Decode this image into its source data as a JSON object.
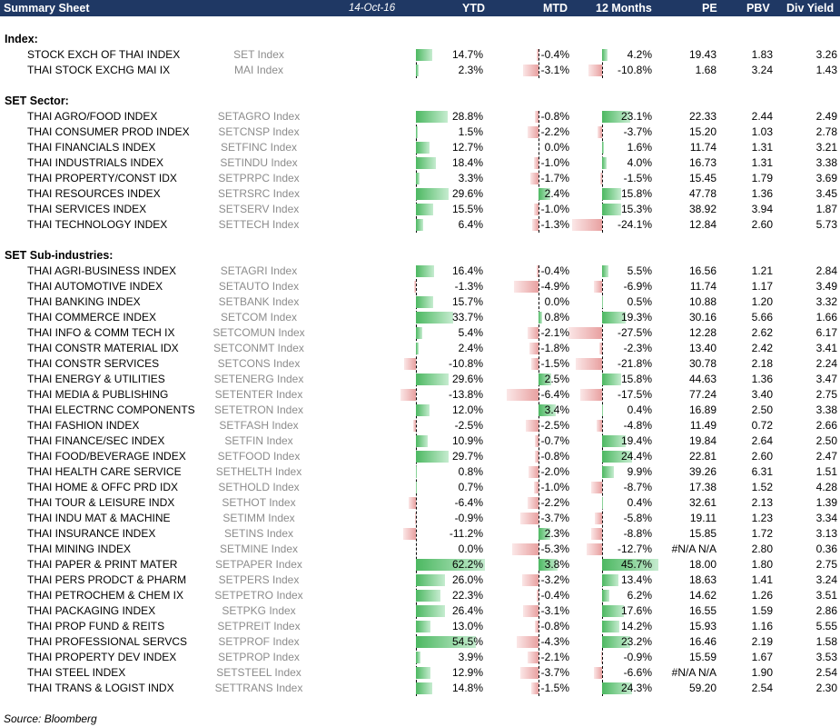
{
  "header": {
    "title": "Summary Sheet",
    "date": "14-Oct-16",
    "columns": {
      "ytd": "YTD",
      "mtd": "MTD",
      "m12": "12 Months",
      "pe": "PE",
      "pbv": "PBV",
      "dy": "Div Yield"
    }
  },
  "colors": {
    "header_bg": "#1f3864",
    "positive_bar": "#4cb861",
    "negative_bar": "#e8a0a0",
    "ticker_text": "#8c8c8c"
  },
  "sections": [
    {
      "title": "Index:",
      "rows": [
        {
          "name": "STOCK EXCH OF THAI INDEX",
          "ticker": "SET Index",
          "ytd": "14.7%",
          "mtd": "-0.4%",
          "m12": "4.2%",
          "pe": "19.43",
          "pbv": "1.83",
          "dy": "3.26"
        },
        {
          "name": "THAI STOCK EXCHG MAI IX",
          "ticker": "MAI Index",
          "ytd": "2.3%",
          "mtd": "-3.1%",
          "m12": "-10.8%",
          "pe": "1.68",
          "pbv": "3.24",
          "dy": "1.43"
        }
      ]
    },
    {
      "title": "SET Sector:",
      "rows": [
        {
          "name": "THAI AGRO/FOOD INDEX",
          "ticker": "SETAGRO Index",
          "ytd": "28.8%",
          "mtd": "-0.8%",
          "m12": "23.1%",
          "pe": "22.33",
          "pbv": "2.44",
          "dy": "2.49"
        },
        {
          "name": "THAI CONSUMER PROD INDEX",
          "ticker": "SETCNSP Index",
          "ytd": "1.5%",
          "mtd": "-2.2%",
          "m12": "-3.7%",
          "pe": "15.20",
          "pbv": "1.03",
          "dy": "2.78"
        },
        {
          "name": "THAI FINANCIALS INDEX",
          "ticker": "SETFINC Index",
          "ytd": "12.7%",
          "mtd": "0.0%",
          "m12": "1.6%",
          "pe": "11.74",
          "pbv": "1.31",
          "dy": "3.21"
        },
        {
          "name": "THAI INDUSTRIALS INDEX",
          "ticker": "SETINDU Index",
          "ytd": "18.4%",
          "mtd": "-1.0%",
          "m12": "4.0%",
          "pe": "16.73",
          "pbv": "1.31",
          "dy": "3.38"
        },
        {
          "name": "THAI PROPERTY/CONST IDX",
          "ticker": "SETPRPC Index",
          "ytd": "3.3%",
          "mtd": "-1.7%",
          "m12": "-1.5%",
          "pe": "15.45",
          "pbv": "1.79",
          "dy": "3.69"
        },
        {
          "name": "THAI RESOURCES INDEX",
          "ticker": "SETRSRC Index",
          "ytd": "29.6%",
          "mtd": "2.4%",
          "m12": "15.8%",
          "pe": "47.78",
          "pbv": "1.36",
          "dy": "3.45"
        },
        {
          "name": "THAI SERVICES INDEX",
          "ticker": "SETSERV Index",
          "ytd": "15.5%",
          "mtd": "-1.0%",
          "m12": "15.3%",
          "pe": "38.92",
          "pbv": "3.94",
          "dy": "1.87"
        },
        {
          "name": "THAI TECHNOLOGY INDEX",
          "ticker": "SETTECH Index",
          "ytd": "6.4%",
          "mtd": "-1.3%",
          "m12": "-24.1%",
          "pe": "12.84",
          "pbv": "2.60",
          "dy": "5.73"
        }
      ]
    },
    {
      "title": "SET Sub-industries:",
      "rows": [
        {
          "name": "THAI AGRI-BUSINESS INDEX",
          "ticker": "SETAGRI Index",
          "ytd": "16.4%",
          "mtd": "-0.4%",
          "m12": "5.5%",
          "pe": "16.56",
          "pbv": "1.21",
          "dy": "2.84"
        },
        {
          "name": "THAI AUTOMOTIVE INDEX",
          "ticker": "SETAUTO Index",
          "ytd": "-1.3%",
          "mtd": "-4.9%",
          "m12": "-6.9%",
          "pe": "11.74",
          "pbv": "1.17",
          "dy": "3.49"
        },
        {
          "name": "THAI BANKING INDEX",
          "ticker": "SETBANK Index",
          "ytd": "15.7%",
          "mtd": "0.0%",
          "m12": "0.5%",
          "pe": "10.88",
          "pbv": "1.20",
          "dy": "3.32"
        },
        {
          "name": "THAI COMMERCE INDEX",
          "ticker": "SETCOM Index",
          "ytd": "33.7%",
          "mtd": "0.8%",
          "m12": "19.3%",
          "pe": "30.16",
          "pbv": "5.66",
          "dy": "1.66"
        },
        {
          "name": "THAI INFO & COMM TECH IX",
          "ticker": "SETCOMUN Index",
          "ytd": "5.4%",
          "mtd": "-2.1%",
          "m12": "-27.5%",
          "pe": "12.28",
          "pbv": "2.62",
          "dy": "6.17"
        },
        {
          "name": "THAI CONSTR MATERIAL IDX",
          "ticker": "SETCONMT Index",
          "ytd": "2.4%",
          "mtd": "-1.8%",
          "m12": "-2.3%",
          "pe": "13.40",
          "pbv": "2.42",
          "dy": "3.41"
        },
        {
          "name": "THAI CONSTR SERVICES",
          "ticker": "SETCONS Index",
          "ytd": "-10.8%",
          "mtd": "-1.5%",
          "m12": "-21.8%",
          "pe": "30.78",
          "pbv": "2.18",
          "dy": "2.24"
        },
        {
          "name": "THAI ENERGY & UTILITIES",
          "ticker": "SETENERG Index",
          "ytd": "29.6%",
          "mtd": "2.5%",
          "m12": "15.8%",
          "pe": "44.63",
          "pbv": "1.36",
          "dy": "3.47"
        },
        {
          "name": "THAI MEDIA & PUBLISHING",
          "ticker": "SETENTER Index",
          "ytd": "-13.8%",
          "mtd": "-6.4%",
          "m12": "-17.5%",
          "pe": "77.24",
          "pbv": "3.40",
          "dy": "2.75"
        },
        {
          "name": "THAI ELECTRNC COMPONENTS",
          "ticker": "SETETRON Index",
          "ytd": "12.0%",
          "mtd": "3.4%",
          "m12": "0.4%",
          "pe": "16.89",
          "pbv": "2.50",
          "dy": "3.38"
        },
        {
          "name": "THAI FASHION INDEX",
          "ticker": "SETFASH Index",
          "ytd": "-2.5%",
          "mtd": "-2.5%",
          "m12": "-4.8%",
          "pe": "11.49",
          "pbv": "0.72",
          "dy": "2.66"
        },
        {
          "name": "THAI FINANCE/SEC INDEX",
          "ticker": "SETFIN Index",
          "ytd": "10.9%",
          "mtd": "-0.7%",
          "m12": "19.4%",
          "pe": "19.84",
          "pbv": "2.64",
          "dy": "2.50"
        },
        {
          "name": "THAI FOOD/BEVERAGE INDEX",
          "ticker": "SETFOOD Index",
          "ytd": "29.7%",
          "mtd": "-0.8%",
          "m12": "24.4%",
          "pe": "22.81",
          "pbv": "2.60",
          "dy": "2.47"
        },
        {
          "name": "THAI HEALTH CARE SERVICE",
          "ticker": "SETHELTH Index",
          "ytd": "0.8%",
          "mtd": "-2.0%",
          "m12": "9.9%",
          "pe": "39.26",
          "pbv": "6.31",
          "dy": "1.51"
        },
        {
          "name": "THAI HOME & OFFC PRD IDX",
          "ticker": "SETHOLD Index",
          "ytd": "0.7%",
          "mtd": "-1.0%",
          "m12": "-8.7%",
          "pe": "17.38",
          "pbv": "1.52",
          "dy": "4.28"
        },
        {
          "name": "THAI TOUR & LEISURE INDX",
          "ticker": "SETHOT Index",
          "ytd": "-6.4%",
          "mtd": "-2.2%",
          "m12": "0.4%",
          "pe": "32.61",
          "pbv": "2.13",
          "dy": "1.39"
        },
        {
          "name": "THAI INDU MAT & MACHINE",
          "ticker": "SETIMM Index",
          "ytd": "-0.9%",
          "mtd": "-3.7%",
          "m12": "-5.8%",
          "pe": "19.11",
          "pbv": "1.23",
          "dy": "3.34"
        },
        {
          "name": "THAI INSURANCE INDEX",
          "ticker": "SETINS Index",
          "ytd": "-11.2%",
          "mtd": "2.3%",
          "m12": "-8.8%",
          "pe": "15.85",
          "pbv": "1.72",
          "dy": "3.13"
        },
        {
          "name": "THAI MINING INDEX",
          "ticker": "SETMINE Index",
          "ytd": "0.0%",
          "mtd": "-5.3%",
          "m12": "-12.7%",
          "pe": "#N/A N/A",
          "pbv": "2.80",
          "dy": "0.36"
        },
        {
          "name": "THAI PAPER & PRINT MATER",
          "ticker": "SETPAPER Index",
          "ytd": "62.2%",
          "mtd": "3.8%",
          "m12": "45.7%",
          "pe": "18.00",
          "pbv": "1.80",
          "dy": "2.75"
        },
        {
          "name": "THAI PERS PRODCT & PHARM",
          "ticker": "SETPERS Index",
          "ytd": "26.0%",
          "mtd": "-3.2%",
          "m12": "13.4%",
          "pe": "18.63",
          "pbv": "1.41",
          "dy": "3.24"
        },
        {
          "name": "THAI PETROCHEM & CHEM IX",
          "ticker": "SETPETRO Index",
          "ytd": "22.3%",
          "mtd": "-0.4%",
          "m12": "6.2%",
          "pe": "14.62",
          "pbv": "1.26",
          "dy": "3.51"
        },
        {
          "name": "THAI PACKAGING INDEX",
          "ticker": "SETPKG Index",
          "ytd": "26.4%",
          "mtd": "-3.1%",
          "m12": "17.6%",
          "pe": "16.55",
          "pbv": "1.59",
          "dy": "2.86"
        },
        {
          "name": "THAI PROP FUND & REITS",
          "ticker": "SETPREIT Index",
          "ytd": "13.0%",
          "mtd": "-0.8%",
          "m12": "14.2%",
          "pe": "15.93",
          "pbv": "1.16",
          "dy": "5.55"
        },
        {
          "name": "THAI PROFESSIONAL SERVCS",
          "ticker": "SETPROF Index",
          "ytd": "54.5%",
          "mtd": "-4.3%",
          "m12": "23.2%",
          "pe": "16.46",
          "pbv": "2.19",
          "dy": "1.58"
        },
        {
          "name": "THAI PROPERTY DEV INDEX",
          "ticker": "SETPROP Index",
          "ytd": "3.9%",
          "mtd": "-2.1%",
          "m12": "-0.9%",
          "pe": "15.59",
          "pbv": "1.67",
          "dy": "3.53"
        },
        {
          "name": "THAI STEEL INDEX",
          "ticker": "SETSTEEL Index",
          "ytd": "12.9%",
          "mtd": "-3.7%",
          "m12": "-6.6%",
          "pe": "#N/A N/A",
          "pbv": "1.90",
          "dy": "2.54"
        },
        {
          "name": "THAI TRANS & LOGIST INDX",
          "ticker": "SETTRANS Index",
          "ytd": "14.8%",
          "mtd": "-1.5%",
          "m12": "24.3%",
          "pe": "59.20",
          "pbv": "2.54",
          "dy": "2.30"
        }
      ]
    }
  ],
  "source": "Source: Bloomberg"
}
